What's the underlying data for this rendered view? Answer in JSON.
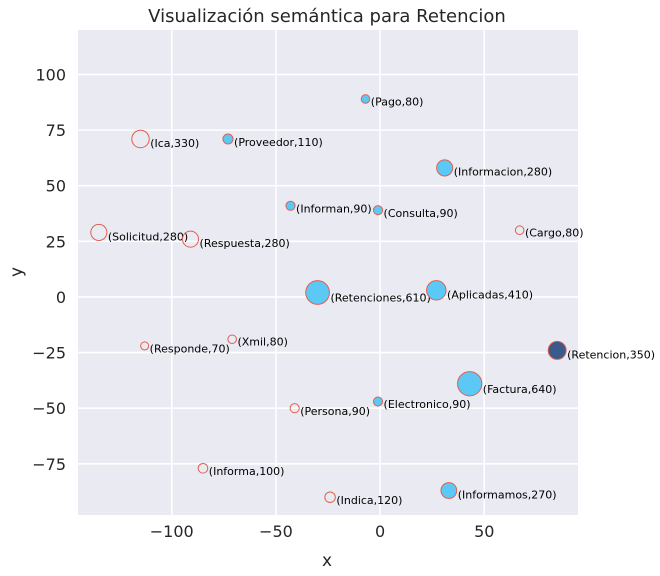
{
  "chart_data": {
    "type": "scatter",
    "title": "Visualización semántica para Retencion",
    "xlabel": "x",
    "ylabel": "y",
    "xlim": [
      -145,
      95
    ],
    "ylim": [
      -98,
      120
    ],
    "xticks": [
      -100,
      -50,
      0,
      50
    ],
    "yticks": [
      -75,
      -50,
      -25,
      0,
      25,
      50,
      75,
      100
    ],
    "xtick_labels": [
      "−100",
      "−50",
      "0",
      "50"
    ],
    "ytick_labels": [
      "−75",
      "−50",
      "−25",
      "0",
      "25",
      "50",
      "75",
      "100"
    ],
    "grid": true,
    "background": "#eaeaf2",
    "colors": {
      "filled": "#5bc8f5",
      "edge": "#e06050",
      "highlight": "#3a5a8c"
    },
    "points": [
      {
        "label": "(Pago,80)",
        "x": -7,
        "y": 89,
        "size": 80,
        "filled": true
      },
      {
        "label": "(Ica,330)",
        "x": -115,
        "y": 71,
        "size": 330,
        "filled": false
      },
      {
        "label": "(Proveedor,110)",
        "x": -73,
        "y": 71,
        "size": 110,
        "filled": true
      },
      {
        "label": "(Informacion,280)",
        "x": 31,
        "y": 58,
        "size": 280,
        "filled": true
      },
      {
        "label": "(Informan,90)",
        "x": -43,
        "y": 41,
        "size": 90,
        "filled": true
      },
      {
        "label": "(Consulta,90)",
        "x": -1,
        "y": 39,
        "size": 90,
        "filled": true
      },
      {
        "label": "(Cargo,80)",
        "x": 67,
        "y": 30,
        "size": 80,
        "filled": false
      },
      {
        "label": "(Solicitud,280)",
        "x": -135,
        "y": 29,
        "size": 280,
        "filled": false
      },
      {
        "label": "(Respuesta,280)",
        "x": -91,
        "y": 26,
        "size": 280,
        "filled": false
      },
      {
        "label": "(Retenciones,610)",
        "x": -30,
        "y": 2,
        "size": 610,
        "filled": true
      },
      {
        "label": "(Aplicadas,410)",
        "x": 27,
        "y": 3,
        "size": 410,
        "filled": true
      },
      {
        "label": "(Xmil,80)",
        "x": -71,
        "y": -19,
        "size": 80,
        "filled": false
      },
      {
        "label": "(Responde,70)",
        "x": -113,
        "y": -22,
        "size": 70,
        "filled": false
      },
      {
        "label": "(Retencion,350)",
        "x": 85,
        "y": -24,
        "size": 350,
        "filled": true,
        "highlight": true
      },
      {
        "label": "(Factura,640)",
        "x": 43,
        "y": -39,
        "size": 640,
        "filled": true
      },
      {
        "label": "(Electronico,90)",
        "x": -1,
        "y": -47,
        "size": 90,
        "filled": true
      },
      {
        "label": "(Persona,90)",
        "x": -41,
        "y": -50,
        "size": 90,
        "filled": false
      },
      {
        "label": "(Informa,100)",
        "x": -85,
        "y": -77,
        "size": 100,
        "filled": false
      },
      {
        "label": "(Informamos,270)",
        "x": 33,
        "y": -87,
        "size": 270,
        "filled": true
      },
      {
        "label": "(Indica,120)",
        "x": -24,
        "y": -90,
        "size": 120,
        "filled": false
      }
    ]
  }
}
